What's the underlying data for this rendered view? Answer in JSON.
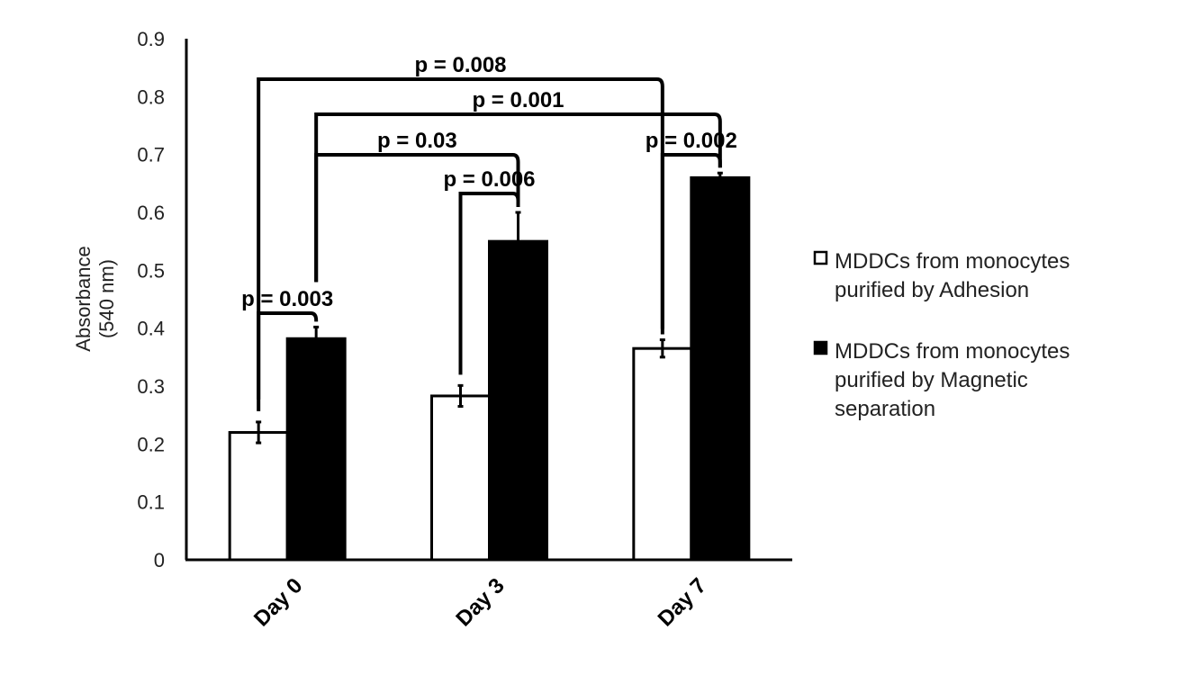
{
  "chart_data": {
    "type": "bar",
    "ylabel": [
      "Absorbance",
      "(540 nm)"
    ],
    "ylim": [
      0,
      0.9
    ],
    "yticks": [
      "0",
      "0.1",
      "0.2",
      "0.3",
      "0.4",
      "0.5",
      "0.6",
      "0.7",
      "0.8",
      "0.9"
    ],
    "categories": [
      "Day 0",
      "Day 3",
      "Day 7"
    ],
    "series": [
      {
        "name": [
          "MDDCs from monocytes",
          "purified by Adhesion"
        ],
        "fill": "#ffffff",
        "values": [
          0.22,
          0.283,
          0.365
        ],
        "errors": [
          0.018,
          0.018,
          0.015
        ]
      },
      {
        "name": [
          "MDDCs from monocytes",
          "purified by Magnetic",
          "separation"
        ],
        "fill": "#000000",
        "values": [
          0.382,
          0.55,
          0.66
        ],
        "errors": [
          0.02,
          0.05,
          0.008
        ]
      }
    ],
    "significance": [
      {
        "label": "p = 0.003",
        "from": [
          0,
          0
        ],
        "to": [
          0,
          1
        ]
      },
      {
        "label": "p = 0.006",
        "from": [
          1,
          0
        ],
        "to": [
          1,
          1
        ]
      },
      {
        "label": "p = 0.002",
        "from": [
          2,
          0
        ],
        "to": [
          2,
          1
        ]
      },
      {
        "label": "p = 0.03",
        "from": [
          0,
          1
        ],
        "to": [
          1,
          1
        ]
      },
      {
        "label": "p = 0.001",
        "from": [
          0,
          1
        ],
        "to": [
          2,
          1
        ]
      },
      {
        "label": "p = 0.008",
        "from": [
          0,
          0
        ],
        "to": [
          2,
          0
        ]
      }
    ],
    "grid": false,
    "legend_position": "right"
  }
}
